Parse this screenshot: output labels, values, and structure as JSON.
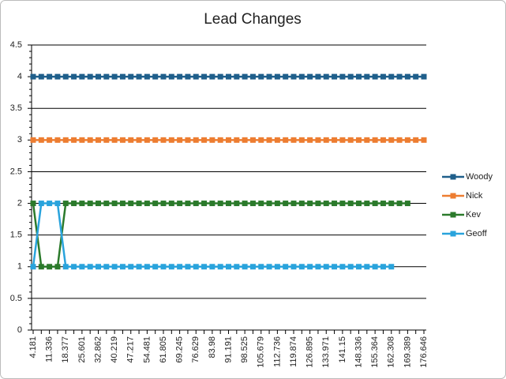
{
  "chart_data": {
    "type": "line",
    "title": "Lead Changes",
    "categories": [
      "4.181",
      null,
      "11.336",
      null,
      "18.377",
      null,
      "25.601",
      null,
      "32.862",
      null,
      "40.219",
      null,
      "47.217",
      null,
      "54.481",
      null,
      "61.805",
      null,
      "69.245",
      null,
      "76.629",
      null,
      "83.98",
      null,
      "91.191",
      null,
      "98.525",
      null,
      "105.679",
      null,
      "112.736",
      null,
      "119.874",
      null,
      "126.895",
      null,
      "133.971",
      null,
      "141.15",
      null,
      "148.336",
      null,
      "155.364",
      null,
      "162.308",
      null,
      "169.389",
      null,
      "176.646"
    ],
    "series": [
      {
        "name": "Woody",
        "color": "#1f5f8b",
        "values": [
          4,
          4,
          4,
          4,
          4,
          4,
          4,
          4,
          4,
          4,
          4,
          4,
          4,
          4,
          4,
          4,
          4,
          4,
          4,
          4,
          4,
          4,
          4,
          4,
          4,
          4,
          4,
          4,
          4,
          4,
          4,
          4,
          4,
          4,
          4,
          4,
          4,
          4,
          4,
          4,
          4,
          4,
          4,
          4,
          4,
          4,
          4,
          4,
          4
        ]
      },
      {
        "name": "Nick",
        "color": "#ed7d31",
        "values": [
          3,
          3,
          3,
          3,
          3,
          3,
          3,
          3,
          3,
          3,
          3,
          3,
          3,
          3,
          3,
          3,
          3,
          3,
          3,
          3,
          3,
          3,
          3,
          3,
          3,
          3,
          3,
          3,
          3,
          3,
          3,
          3,
          3,
          3,
          3,
          3,
          3,
          3,
          3,
          3,
          3,
          3,
          3,
          3,
          3,
          3,
          3,
          3,
          3
        ]
      },
      {
        "name": "Kev",
        "color": "#2b7a2b",
        "values": [
          2,
          1,
          1,
          1,
          2,
          2,
          2,
          2,
          2,
          2,
          2,
          2,
          2,
          2,
          2,
          2,
          2,
          2,
          2,
          2,
          2,
          2,
          2,
          2,
          2,
          2,
          2,
          2,
          2,
          2,
          2,
          2,
          2,
          2,
          2,
          2,
          2,
          2,
          2,
          2,
          2,
          2,
          2,
          2,
          2,
          2,
          2,
          null,
          null
        ]
      },
      {
        "name": "Geoff",
        "color": "#29a3dc",
        "values": [
          1,
          2,
          2,
          2,
          1,
          1,
          1,
          1,
          1,
          1,
          1,
          1,
          1,
          1,
          1,
          1,
          1,
          1,
          1,
          1,
          1,
          1,
          1,
          1,
          1,
          1,
          1,
          1,
          1,
          1,
          1,
          1,
          1,
          1,
          1,
          1,
          1,
          1,
          1,
          1,
          1,
          1,
          1,
          1,
          1,
          null,
          null,
          null,
          null
        ]
      }
    ],
    "ylim": [
      0,
      4.5
    ],
    "yticks": [
      0,
      0.5,
      1,
      1.5,
      2,
      2.5,
      3,
      3.5,
      4,
      4.5
    ],
    "grid": true,
    "legend": "right"
  }
}
